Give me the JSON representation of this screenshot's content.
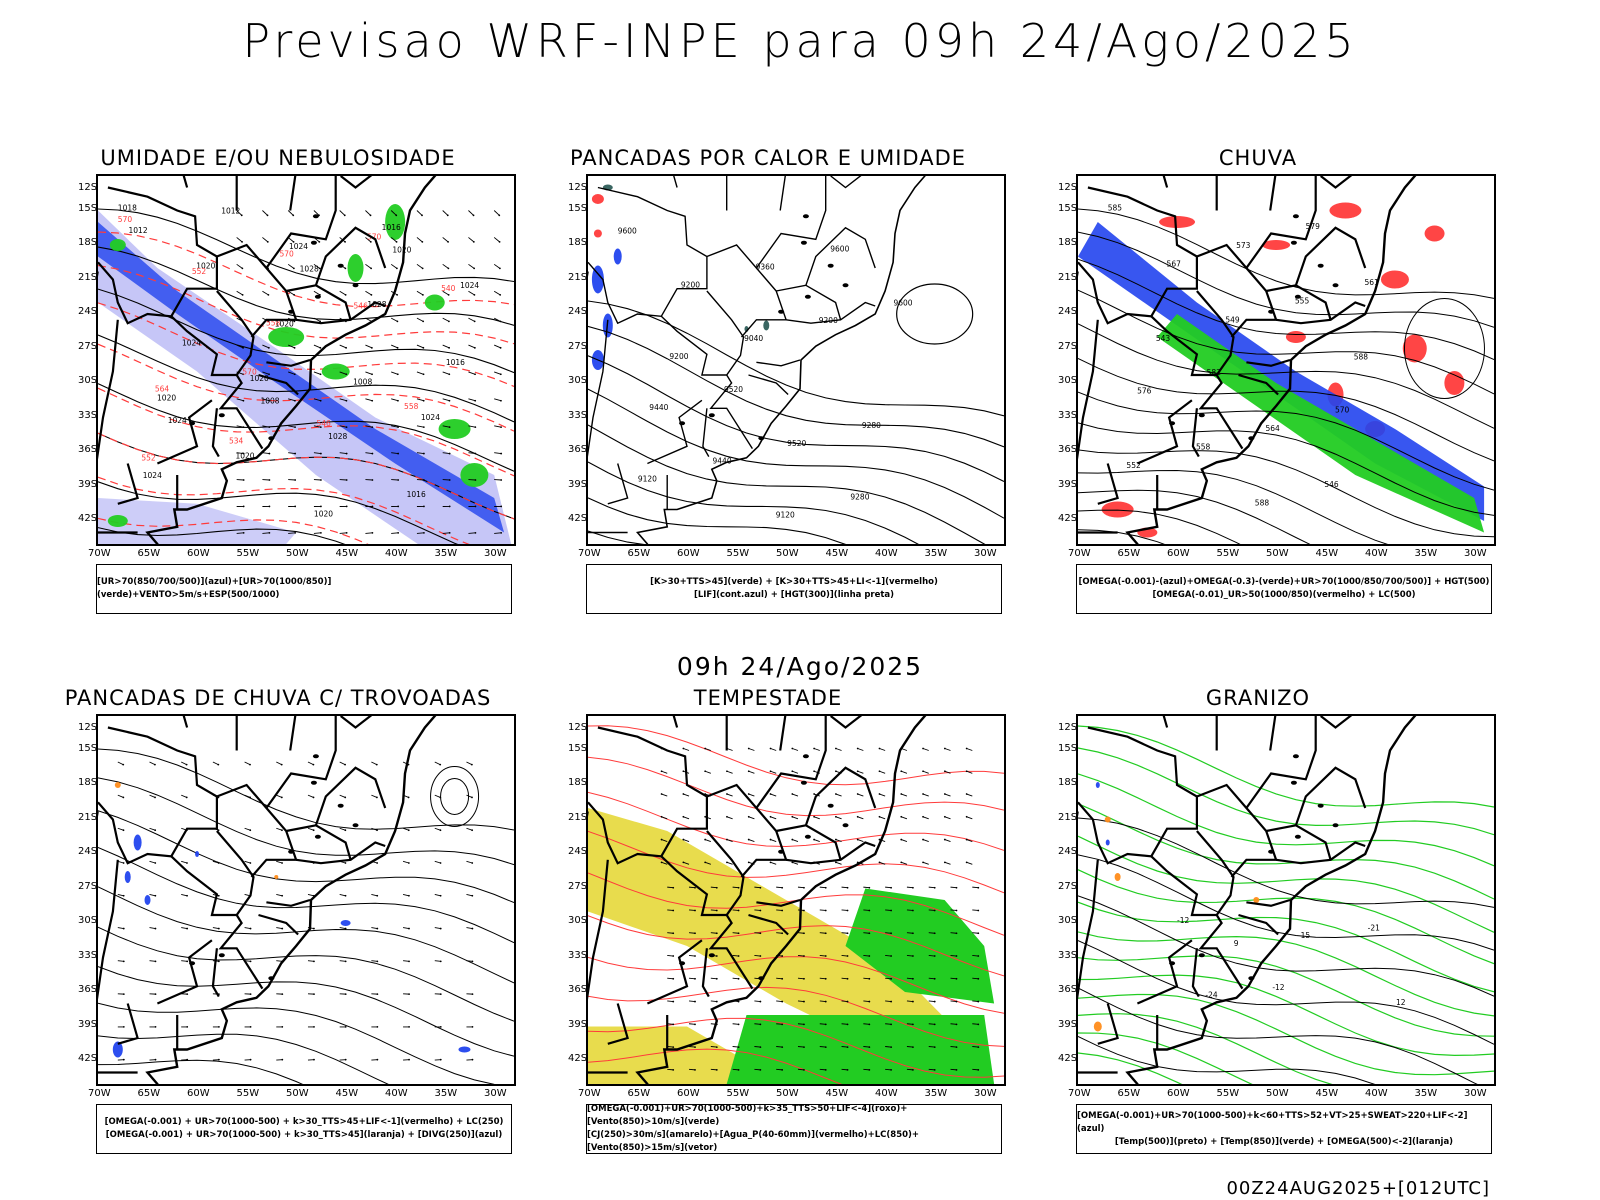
{
  "title": "Previsao WRF-INPE  para 09h 24/Ago/2025",
  "subtitle": "09h 24/Ago/2025",
  "footer": "00Z24AUG2025+[012UTC]",
  "axes": {
    "lat_labels": [
      "12S",
      "15S",
      "18S",
      "21S",
      "24S",
      "27S",
      "30S",
      "33S",
      "36S",
      "39S",
      "42S"
    ],
    "lon_labels": [
      "70W",
      "65W",
      "60W",
      "55W",
      "50W",
      "45W",
      "40W",
      "35W",
      "30W"
    ]
  },
  "colors": {
    "blue": "#2244ee",
    "green": "#22cc22",
    "red": "#ff3b3b",
    "yellow": "#e6d83a",
    "orange": "#ff8c1a",
    "teal": "#2f5e5a",
    "lavender": "#b8b8f5"
  },
  "panels": [
    {
      "title": "UMIDADE E/OU NEBULOSIDADE",
      "legend": [
        "[UR>70(850/700/500)](azul)+[UR>70(1000/850)](verde)+VENTO>5m/s+ESP(500/1000)"
      ],
      "contour_labels": [
        "1018",
        "1020",
        "1016",
        "1020",
        "1024",
        "1024",
        "1020",
        "1028",
        "1024",
        "1020",
        "1028",
        "1024",
        "1020",
        "1016",
        "1024",
        "1020",
        "1016",
        "1012",
        "1008",
        "1012",
        "1008",
        "1020",
        "1024",
        "1028"
      ],
      "red_labels": [
        "570",
        "570",
        "570",
        "564",
        "570",
        "558",
        "552",
        "546",
        "540",
        "534",
        "546",
        "552",
        "558"
      ]
    },
    {
      "title": "PANCADAS POR CALOR E UMIDADE",
      "legend": [
        "[K>30+TTS>45](verde) + [K>30+TTS>45+LI<-1](vermelho)",
        "[LIF](cont.azul) + [HGT(300)](linha preta)"
      ],
      "contour_labels": [
        "9600",
        "9520",
        "9600",
        "9440",
        "9360",
        "9280",
        "9200",
        "9520",
        "9600",
        "9440",
        "9200",
        "9120",
        "9040",
        "9280",
        "9200",
        "9120"
      ]
    },
    {
      "title": "CHUVA",
      "legend": [
        "[OMEGA(-0.001)-(azul)+OMEGA(-0.3)-(verde)+UR>70(1000/850/700/500)] + HGT(500)",
        "[OMEGA(-0.01)_UR>50(1000/850)(vermelho) + LC(500)"
      ],
      "contour_labels": [
        "585",
        "582",
        "579",
        "576",
        "573",
        "570",
        "567",
        "564",
        "561",
        "558",
        "555",
        "552",
        "549",
        "546",
        "543",
        "588",
        "588"
      ]
    },
    {
      "title": "PANCADAS DE CHUVA C/ TROVOADAS",
      "legend": [
        "[OMEGA(-0.001) + UR>70(1000-500) + k>30_TTS>45+LIF<-1](vermelho) + LC(250)",
        "[OMEGA(-0.001) + UR>70(1000-500) + k>30_TTS>45](laranja) + [DIVG(250)](azul)"
      ]
    },
    {
      "title": "TEMPESTADE",
      "legend": [
        "[OMEGA(-0.001)+UR>70(1000-500)+k>35_TTS>50+LIF<-4](roxo)+[Vento(850)>10m/s](verde)",
        "[CJ(250)>30m/s](amarelo)+[Agua_P(40-60mm)](vermelho)+LC(850)+[Vento(850)>15m/s](vetor)"
      ]
    },
    {
      "title": "GRANIZO",
      "legend": [
        "[OMEGA(-0.001)+UR>70(1000-500)+k<60+TTS>52+VT>25+SWEAT>220+LIF<-2](azul)",
        "[Temp(500)](preto) + [Temp(850)](verde) + [OMEGA(500)<-2](laranja)"
      ],
      "contour_labels": [
        "-12",
        "-12",
        "-21",
        "-24",
        "15",
        "12",
        "9"
      ]
    }
  ]
}
